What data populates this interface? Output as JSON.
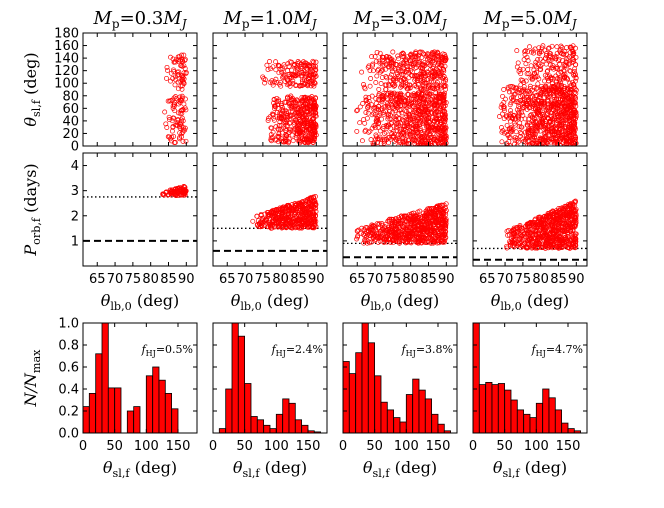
{
  "figure": {
    "columns": [
      {
        "title": "M_p = 0.3 M_J",
        "annotation": "f_HJ = 0.5%"
      },
      {
        "title": "M_p = 1.0 M_J",
        "annotation": "f_HJ = 2.4%"
      },
      {
        "title": "M_p = 3.0 M_J",
        "annotation": "f_HJ = 3.8%"
      },
      {
        "title": "M_p = 5.0 M_J",
        "annotation": "f_HJ = 4.7%"
      }
    ],
    "row_ylabels": [
      "θ_sl,f (deg)",
      "P_orb,f (days)",
      "N/N_max"
    ],
    "xlabel_lb": "θ_lb,0 (deg)",
    "xlabel_sl": "θ_sl,f (deg)"
  },
  "chart_data": [
    {
      "type": "scatter",
      "row": "final spin-orbit angle vs initial inclination",
      "xlim": [
        61,
        93
      ],
      "ylim": [
        0,
        180
      ],
      "xticks": [
        65,
        70,
        75,
        80,
        85,
        90
      ],
      "yticks": [
        0,
        20,
        40,
        60,
        80,
        100,
        120,
        140,
        160,
        180
      ],
      "xlabel": "θ_lb,0 (deg)",
      "ylabel": "θ_sl,f (deg)",
      "marker": "open circle",
      "marker_color": "#ff0000",
      "series": [
        {
          "name": "M_p = 0.3 M_J",
          "x_range": [
            83,
            90
          ],
          "clusters": [
            {
              "x": [
                84,
                90
              ],
              "y": [
                90,
                145
              ],
              "n": 60
            },
            {
              "x": [
                83,
                90
              ],
              "y": [
                5,
                80
              ],
              "n": 80
            }
          ]
        },
        {
          "name": "M_p = 1.0 M_J",
          "x_range": [
            72,
            90
          ],
          "clusters": [
            {
              "x": [
                74,
                90
              ],
              "y": [
                95,
                135
              ],
              "n": 160
            },
            {
              "x": [
                76,
                90
              ],
              "y": [
                5,
                80
              ],
              "n": 420
            }
          ]
        },
        {
          "name": "M_p = 3.0 M_J",
          "x_range": [
            64,
            90
          ],
          "clusters": [
            {
              "x": [
                66,
                90
              ],
              "y": [
                90,
                150
              ],
              "n": 360
            },
            {
              "x": [
                64,
                90
              ],
              "y": [
                0,
                85
              ],
              "n": 700
            }
          ]
        },
        {
          "name": "M_p = 5.0 M_J",
          "x_range": [
            66,
            90
          ],
          "clusters": [
            {
              "x": [
                72,
                90
              ],
              "y": [
                95,
                160
              ],
              "n": 200
            },
            {
              "x": [
                68,
                90
              ],
              "y": [
                0,
                95
              ],
              "n": 800
            }
          ]
        }
      ]
    },
    {
      "type": "scatter",
      "row": "final orbital period vs initial inclination",
      "xlim": [
        61,
        93
      ],
      "ylim": [
        0,
        4.5
      ],
      "xticks": [
        65,
        70,
        75,
        80,
        85,
        90
      ],
      "yticks": [
        1,
        2,
        3,
        4
      ],
      "xlabel": "θ_lb,0 (deg)",
      "ylabel": "P_orb,f (days)",
      "series": [
        {
          "name": "M_p = 0.3 M_J",
          "x_range": [
            83,
            90
          ],
          "y_range": [
            2.8,
            3.2
          ],
          "n": 90,
          "dotted_line_y": 2.75,
          "dashed_line_y": 1.0
        },
        {
          "name": "M_p = 1.0 M_J",
          "x_range": [
            72,
            90
          ],
          "y_range": [
            1.5,
            2.8
          ],
          "n": 450,
          "dotted_line_y": 1.5,
          "dashed_line_y": 0.6
        },
        {
          "name": "M_p = 3.0 M_J",
          "x_range": [
            64,
            90
          ],
          "y_range": [
            0.9,
            2.5
          ],
          "n": 700,
          "dotted_line_y": 0.9,
          "dashed_line_y": 0.35
        },
        {
          "name": "M_p = 5.0 M_J",
          "x_range": [
            70,
            90
          ],
          "y_range": [
            0.7,
            2.6
          ],
          "n": 700,
          "dotted_line_y": 0.7,
          "dashed_line_y": 0.25
        }
      ]
    },
    {
      "type": "bar",
      "row": "histograms of final spin-orbit angle",
      "bin_width": 10,
      "xlim": [
        0,
        180
      ],
      "ylim": [
        0,
        1.0
      ],
      "xticks": [
        0,
        50,
        100,
        150
      ],
      "yticks": [
        0.0,
        0.2,
        0.4,
        0.6,
        0.8,
        1.0
      ],
      "xlabel": "θ_sl,f (deg)",
      "ylabel": "N/N_max",
      "bar_color": "#ff0000",
      "series": [
        {
          "name": "M_p = 0.3 M_J",
          "bin_starts": [
            0,
            10,
            20,
            30,
            40,
            50,
            60,
            70,
            80,
            90,
            100,
            110,
            120,
            130,
            140,
            150,
            160,
            170
          ],
          "values": [
            0.24,
            0.36,
            0.72,
            1.0,
            0.41,
            0.41,
            0.0,
            0.2,
            0.24,
            0.0,
            0.52,
            0.6,
            0.48,
            0.36,
            0.22,
            0,
            0,
            0
          ]
        },
        {
          "name": "M_p = 1.0 M_J",
          "bin_starts": [
            0,
            10,
            20,
            30,
            40,
            50,
            60,
            70,
            80,
            90,
            100,
            110,
            120,
            130,
            140,
            150,
            160,
            170
          ],
          "values": [
            0.0,
            0.04,
            0.4,
            1.0,
            0.88,
            0.45,
            0.15,
            0.12,
            0.07,
            0.04,
            0.17,
            0.31,
            0.27,
            0.12,
            0.07,
            0.02,
            0.01,
            0
          ]
        },
        {
          "name": "M_p = 3.0 M_J",
          "bin_starts": [
            0,
            10,
            20,
            30,
            40,
            50,
            60,
            70,
            80,
            90,
            100,
            110,
            120,
            130,
            140,
            150,
            160,
            170
          ],
          "values": [
            0.65,
            0.54,
            0.73,
            1.0,
            0.82,
            0.52,
            0.28,
            0.21,
            0.14,
            0.1,
            0.35,
            0.49,
            0.39,
            0.31,
            0.17,
            0.08,
            0.02,
            0
          ]
        },
        {
          "name": "M_p = 5.0 M_J",
          "bin_starts": [
            0,
            10,
            20,
            30,
            40,
            50,
            60,
            70,
            80,
            90,
            100,
            110,
            120,
            130,
            140,
            150,
            160,
            170
          ],
          "values": [
            1.0,
            0.44,
            0.46,
            0.44,
            0.45,
            0.39,
            0.3,
            0.21,
            0.17,
            0.14,
            0.27,
            0.4,
            0.32,
            0.21,
            0.09,
            0.04,
            0.02,
            0
          ]
        }
      ]
    }
  ]
}
